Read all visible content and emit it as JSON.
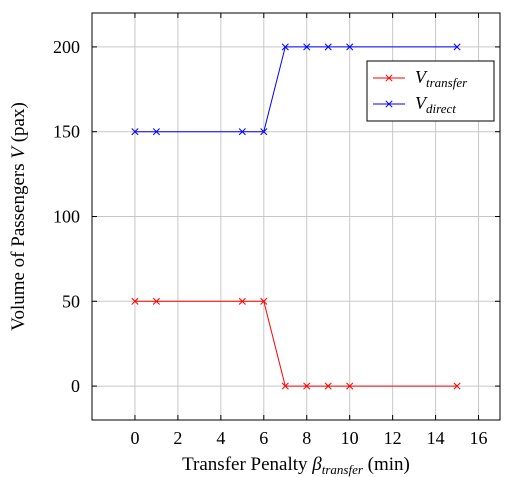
{
  "chart_data": {
    "type": "line",
    "xlabel": {
      "text": "Transfer Penalty ",
      "symbol": "β",
      "sub": "transfer",
      "unit": " (min)"
    },
    "ylabel": {
      "text": "Volume of Passengers ",
      "symbol": "V",
      "unit": " (pax)"
    },
    "xlim": [
      -2,
      17
    ],
    "ylim": [
      -20,
      220
    ],
    "xticks": [
      0,
      2,
      4,
      6,
      8,
      10,
      12,
      14,
      16
    ],
    "yticks": [
      0,
      50,
      100,
      150,
      200
    ],
    "grid": true,
    "legend_position": "top-right",
    "series": [
      {
        "name": "V",
        "sub": "transfer",
        "color": "#ff0000",
        "marker": "x",
        "x": [
          0,
          1,
          5,
          6,
          7,
          8,
          9,
          10,
          15
        ],
        "y": [
          50,
          50,
          50,
          50,
          0,
          0,
          0,
          0,
          0
        ]
      },
      {
        "name": "V",
        "sub": "direct",
        "color": "#0000ff",
        "marker": "x",
        "x": [
          0,
          1,
          5,
          6,
          7,
          8,
          9,
          10,
          15
        ],
        "y": [
          150,
          150,
          150,
          150,
          200,
          200,
          200,
          200,
          200
        ]
      }
    ]
  }
}
